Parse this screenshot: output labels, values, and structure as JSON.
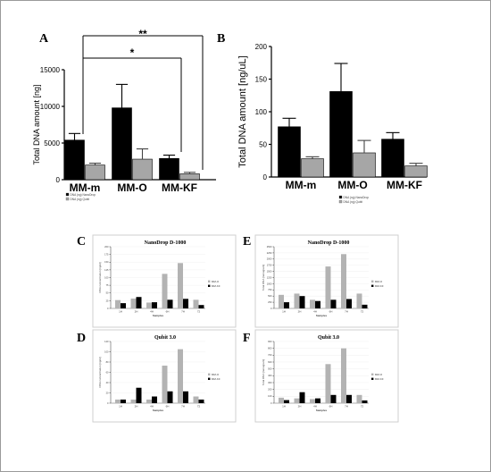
{
  "panel_letters": [
    "A",
    "B",
    "C",
    "D",
    "E",
    "F"
  ],
  "significance": [
    "**",
    "*"
  ],
  "chart_data": [
    {
      "id": "A",
      "type": "bar",
      "categories": [
        "MM-m",
        "MM-O",
        "MM-KF"
      ],
      "series": [
        {
          "name": "DNA (ng) NanoDrop",
          "values": [
            5400,
            9800,
            2900
          ],
          "errors": [
            900,
            3200,
            450
          ],
          "color": "#000000"
        },
        {
          "name": "DNA (ng) Qubit",
          "values": [
            2000,
            2800,
            800
          ],
          "errors": [
            250,
            1400,
            200
          ],
          "color": "#a6a6a6"
        }
      ],
      "ylabel": "Total DNA amount [ng]",
      "ylim": [
        0,
        15000
      ],
      "yticks": [
        0,
        5000,
        10000,
        15000
      ],
      "legend": "below-left"
    },
    {
      "id": "B",
      "type": "bar",
      "categories": [
        "MM-m",
        "MM-O",
        "MM-KF"
      ],
      "series": [
        {
          "name": "DNA (ng) NanoDrop",
          "values": [
            77,
            131,
            58
          ],
          "errors": [
            13,
            43,
            10
          ],
          "color": "#000000"
        },
        {
          "name": "DNA (ng) Qubit",
          "values": [
            28,
            37,
            17
          ],
          "errors": [
            3,
            19,
            4
          ],
          "color": "#a6a6a6"
        }
      ],
      "ylabel": "Total DNA amount [ng/uL]",
      "ylim": [
        0,
        200
      ],
      "yticks": [
        0,
        50,
        100,
        150,
        200
      ],
      "legend": "below-left"
    },
    {
      "id": "C",
      "type": "bar",
      "title": "NanoDrop D-1000",
      "categories": [
        "1H",
        "2H",
        "4H",
        "6H",
        "7H",
        "72"
      ],
      "series": [
        {
          "name": "MM-O",
          "values": [
            27,
            32,
            19,
            112,
            147,
            28
          ],
          "color": "#b3b3b3"
        },
        {
          "name": "MM-KF",
          "values": [
            17,
            37,
            20,
            28,
            31,
            11
          ],
          "color": "#000000"
        }
      ],
      "xlabel": "Samples",
      "ylabel": "DNA concentration [ng/ul]",
      "ylim": [
        0,
        200
      ],
      "yticks": [
        0,
        25,
        50,
        75,
        100,
        125,
        150,
        175,
        200
      ]
    },
    {
      "id": "E",
      "type": "bar",
      "title": "NanoDrop D-1000",
      "categories": [
        "1H",
        "2H",
        "4H",
        "6H",
        "7H",
        "72"
      ],
      "series": [
        {
          "name": "MM-O",
          "values": [
            550,
            600,
            350,
            1700,
            2200,
            600
          ],
          "color": "#b3b3b3"
        },
        {
          "name": "MM-KF",
          "values": [
            250,
            500,
            300,
            350,
            380,
            150
          ],
          "color": "#000000"
        }
      ],
      "xlabel": "Samples",
      "ylabel": "Total DNA [nanogram]",
      "ylim": [
        0,
        2500
      ],
      "yticks": [
        0,
        250,
        500,
        750,
        1000,
        1250,
        1500,
        1750,
        2000,
        2250,
        2500
      ]
    },
    {
      "id": "D",
      "type": "bar",
      "title": "Qubit 3.0",
      "categories": [
        "1H",
        "2H",
        "4H",
        "6H",
        "7H",
        "72"
      ],
      "series": [
        {
          "name": "MM-O",
          "values": [
            7,
            7,
            7,
            73,
            105,
            13
          ],
          "color": "#b3b3b3"
        },
        {
          "name": "MM-KF",
          "values": [
            7,
            30,
            13,
            23,
            23,
            7
          ],
          "color": "#000000"
        }
      ],
      "xlabel": "Samples",
      "ylabel": "DNA concentration [ng/ul]",
      "ylim": [
        0,
        120
      ],
      "yticks": [
        0,
        20,
        40,
        60,
        80,
        100,
        120
      ]
    },
    {
      "id": "F",
      "type": "bar",
      "title": "Qubit 3.0",
      "categories": [
        "1H",
        "2H",
        "4H",
        "6H",
        "7H",
        "72"
      ],
      "series": [
        {
          "name": "MM-O",
          "values": [
            80,
            70,
            60,
            570,
            800,
            120
          ],
          "color": "#b3b3b3"
        },
        {
          "name": "MM-KF",
          "values": [
            45,
            160,
            70,
            120,
            120,
            40
          ],
          "color": "#000000"
        }
      ],
      "xlabel": "Samples",
      "ylabel": "Total DNA [nanogram]",
      "ylim": [
        0,
        900
      ],
      "yticks": [
        0,
        100,
        200,
        300,
        400,
        500,
        600,
        700,
        800,
        900
      ]
    }
  ]
}
